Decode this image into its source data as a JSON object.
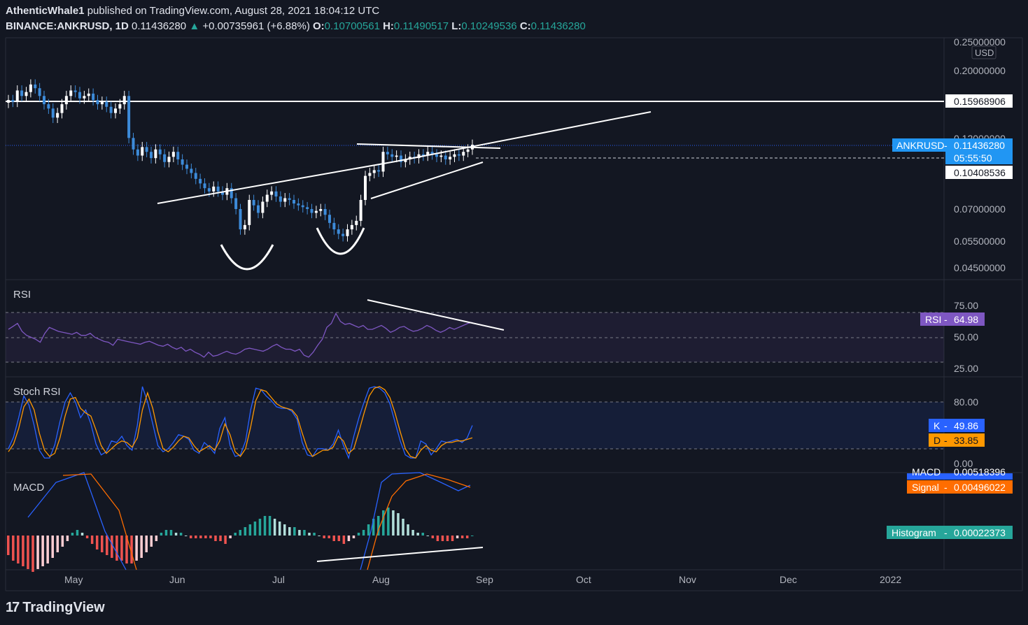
{
  "header": {
    "publisher": "AthenticWhale1",
    "published_text": "published on TradingView.com, August 28, 2021 18:04:12 UTC",
    "symbol": "BINANCE:ANKRUSD, 1D",
    "last": "0.11436280",
    "change": "+0.00735961 (+6.88%)",
    "o_label": "O:",
    "o_val": "0.10700561",
    "h_label": "H:",
    "h_val": "0.11490517",
    "l_label": "L:",
    "l_val": "0.10249536",
    "c_label": "C:",
    "c_val": "0.11436280"
  },
  "footer": {
    "brand": "TradingView",
    "logo": "17"
  },
  "colors": {
    "background": "#131722",
    "up": "#ffffff",
    "down": "#3d8bd9",
    "rsi": "#7e57c2",
    "stoch_k": "#2962ff",
    "stoch_d": "#ff9800",
    "macd": "#2962ff",
    "signal": "#ff6d00",
    "hist_pos": "#26a69a",
    "hist_neg": "#ef5350"
  },
  "chart_data": [
    {
      "type": "candlestick",
      "title": "BINANCE:ANKRUSD, 1D",
      "currency": "USD",
      "y_scale": "log",
      "y_ticks": [
        "0.25000000",
        "0.20000000",
        "0.12000000",
        "0.07000000",
        "0.05500000",
        "0.04500000"
      ],
      "x_ticks": [
        "May",
        "Jun",
        "Jul",
        "Aug",
        "Sep",
        "Oct",
        "Nov",
        "Dec",
        "2022"
      ],
      "horizontal_level": "0.15968906",
      "price_label": "ANKRUSD",
      "price_value": "0.11436280",
      "countdown": "05:55:50",
      "second_level": "0.10408536",
      "series_close": [
        0.16,
        0.158,
        0.172,
        0.165,
        0.17,
        0.18,
        0.175,
        0.165,
        0.155,
        0.15,
        0.14,
        0.145,
        0.155,
        0.165,
        0.172,
        0.17,
        0.162,
        0.165,
        0.168,
        0.16,
        0.155,
        0.158,
        0.152,
        0.145,
        0.15,
        0.155,
        0.165,
        0.12,
        0.11,
        0.105,
        0.112,
        0.108,
        0.103,
        0.11,
        0.106,
        0.1,
        0.104,
        0.108,
        0.102,
        0.098,
        0.095,
        0.092,
        0.088,
        0.085,
        0.082,
        0.08,
        0.083,
        0.08,
        0.078,
        0.082,
        0.076,
        0.07,
        0.06,
        0.062,
        0.075,
        0.072,
        0.068,
        0.074,
        0.078,
        0.08,
        0.077,
        0.074,
        0.076,
        0.075,
        0.073,
        0.072,
        0.071,
        0.07,
        0.068,
        0.069,
        0.07,
        0.067,
        0.063,
        0.06,
        0.058,
        0.057,
        0.06,
        0.062,
        0.064,
        0.075,
        0.09,
        0.092,
        0.094,
        0.093,
        0.108,
        0.106,
        0.104,
        0.105,
        0.1,
        0.102,
        0.104,
        0.103,
        0.106,
        0.105,
        0.108,
        0.106,
        0.104,
        0.105,
        0.102,
        0.104,
        0.106,
        0.105,
        0.108,
        0.11,
        0.114
      ],
      "series_pattern": "falling then rounded bottoms, rising channel into breakout"
    },
    {
      "type": "line",
      "title": "RSI",
      "y_ticks": [
        "75.00",
        "50.00",
        "25.00"
      ],
      "last_label": "RSI",
      "last_value": "64.98",
      "series": [
        {
          "values": [
            58,
            61,
            64,
            56,
            52,
            50,
            48,
            45,
            54,
            60,
            58,
            56,
            55,
            54,
            53,
            55,
            52,
            52,
            54,
            50,
            48,
            46,
            45,
            42,
            48,
            47,
            46,
            45,
            44,
            43,
            45,
            46,
            44,
            42,
            41,
            43,
            40,
            38,
            40,
            36,
            38,
            35,
            33,
            30,
            35,
            31,
            32,
            34,
            36,
            34,
            33,
            35,
            38,
            39,
            38,
            37,
            36,
            38,
            41,
            43,
            40,
            38,
            38,
            36,
            38,
            32,
            30,
            35,
            42,
            48,
            60,
            64,
            74,
            66,
            63,
            64,
            62,
            60,
            62,
            58,
            58,
            60,
            62,
            59,
            55,
            57,
            60,
            61,
            58,
            56,
            57,
            59,
            62,
            60,
            57,
            55,
            57,
            60,
            58,
            60,
            62,
            64,
            65
          ]
        }
      ]
    },
    {
      "type": "line",
      "title": "Stoch RSI",
      "y_ticks": [
        "80.00",
        "0.00"
      ],
      "k_label": "K",
      "k_value": "49.86",
      "d_label": "D",
      "d_value": "33.85",
      "series": [
        {
          "name": "K",
          "values": [
            20,
            35,
            60,
            88,
            76,
            50,
            18,
            8,
            8,
            25,
            55,
            80,
            92,
            80,
            60,
            70,
            52,
            26,
            12,
            16,
            30,
            28,
            36,
            24,
            18,
            50,
            100,
            80,
            52,
            24,
            16,
            20,
            28,
            38,
            36,
            32,
            18,
            14,
            28,
            22,
            14,
            46,
            60,
            24,
            10,
            12,
            30,
            70,
            98,
            96,
            88,
            82,
            74,
            72,
            72,
            68,
            58,
            28,
            12,
            10,
            20,
            20,
            18,
            26,
            44,
            24,
            8,
            36,
            60,
            80,
            98,
            100,
            98,
            92,
            78,
            54,
            30,
            12,
            8,
            8,
            30,
            26,
            12,
            20,
            30,
            28,
            30,
            32,
            28,
            34,
            50
          ]
        },
        {
          "name": "D",
          "values": [
            16,
            26,
            46,
            74,
            84,
            70,
            40,
            18,
            10,
            14,
            34,
            62,
            84,
            86,
            72,
            66,
            62,
            44,
            24,
            14,
            20,
            26,
            30,
            28,
            22,
            34,
            70,
            92,
            72,
            42,
            20,
            16,
            22,
            30,
            36,
            34,
            24,
            16,
            20,
            24,
            18,
            30,
            52,
            38,
            16,
            10,
            20,
            48,
            82,
            96,
            94,
            86,
            78,
            74,
            72,
            70,
            62,
            40,
            20,
            10,
            14,
            18,
            18,
            22,
            36,
            30,
            14,
            20,
            42,
            66,
            88,
            98,
            100,
            96,
            86,
            66,
            42,
            20,
            10,
            8,
            18,
            24,
            18,
            16,
            24,
            28,
            28,
            30,
            30,
            32,
            34
          ]
        }
      ]
    },
    {
      "type": "bar",
      "title": "MACD",
      "macd_label": "MACD",
      "macd_value": "0.00518396",
      "signal_label": "Signal",
      "signal_value": "0.00496022",
      "hist_label": "Histogram",
      "hist_value": "0.00022373",
      "histogram": [
        -0.007,
        -0.009,
        -0.01,
        -0.011,
        -0.012,
        -0.013,
        -0.012,
        -0.011,
        -0.01,
        -0.008,
        -0.006,
        -0.004,
        -0.002,
        0.001,
        0.002,
        0.001,
        -0.001,
        -0.003,
        -0.005,
        -0.006,
        -0.007,
        -0.008,
        -0.009,
        -0.009,
        -0.01,
        -0.01,
        -0.009,
        -0.008,
        -0.006,
        -0.004,
        -0.002,
        0.001,
        0.002,
        0.002,
        0.001,
        0.001,
        0.0,
        -0.001,
        -0.001,
        -0.001,
        -0.001,
        -0.001,
        -0.002,
        -0.002,
        -0.003,
        -0.001,
        0.001,
        0.002,
        0.003,
        0.004,
        0.005,
        0.006,
        0.007,
        0.007,
        0.006,
        0.005,
        0.004,
        0.003,
        0.003,
        0.002,
        0.002,
        0.001,
        0.001,
        0.0,
        -0.001,
        -0.001,
        -0.002,
        -0.002,
        -0.003,
        -0.002,
        -0.001,
        0.001,
        0.002,
        0.004,
        0.006,
        0.007,
        0.009,
        0.01,
        0.009,
        0.008,
        0.006,
        0.004,
        0.002,
        0.001,
        0.001,
        0.0,
        -0.001,
        -0.002,
        -0.002,
        -0.002,
        -0.002,
        -0.001,
        -0.001,
        -0.001,
        0.0
      ]
    }
  ]
}
